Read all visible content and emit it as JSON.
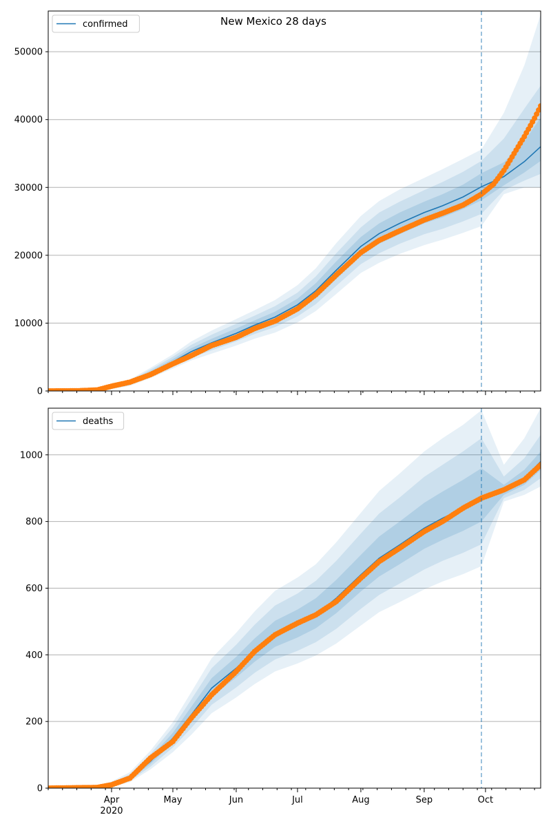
{
  "figure": {
    "title": "New Mexico 28 days"
  },
  "colors": {
    "line": "#1f77b4",
    "points": "#ff7f0e",
    "band": "#1f77b4",
    "grid": "#b0b0b0",
    "divider": "#1f77b4"
  },
  "chart_data": [
    {
      "type": "line",
      "name": "confirmed",
      "legend_label": "confirmed",
      "legend_position": "top-left",
      "grid": "horizontal",
      "x_range": [
        "2020-03-01",
        "2020-10-28"
      ],
      "ylim": [
        0,
        56000
      ],
      "y_ticks": [
        {
          "value": 0,
          "label": "0"
        },
        {
          "value": 10000,
          "label": "10000"
        },
        {
          "value": 20000,
          "label": "20000"
        },
        {
          "value": 30000,
          "label": "30000"
        },
        {
          "value": 40000,
          "label": "40000"
        },
        {
          "value": 50000,
          "label": "50000"
        }
      ],
      "forecast_start": "2020-09-29",
      "model": {
        "dates": [
          "2020-03-01",
          "2020-03-15",
          "2020-03-25",
          "2020-04-01",
          "2020-04-10",
          "2020-04-20",
          "2020-05-01",
          "2020-05-10",
          "2020-05-20",
          "2020-06-01",
          "2020-06-10",
          "2020-06-20",
          "2020-07-01",
          "2020-07-10",
          "2020-07-20",
          "2020-08-01",
          "2020-08-10",
          "2020-08-20",
          "2020-09-01",
          "2020-09-10",
          "2020-09-20",
          "2020-09-29",
          "2020-10-10",
          "2020-10-20",
          "2020-10-28"
        ],
        "median": [
          0,
          20,
          150,
          500,
          1200,
          2600,
          4300,
          5800,
          7100,
          8500,
          9700,
          10900,
          12700,
          14800,
          17800,
          21300,
          23200,
          24700,
          26300,
          27300,
          28600,
          30100,
          31600,
          33800,
          36000
        ],
        "band_inner": [
          [
            0,
            0
          ],
          [
            15,
            25
          ],
          [
            110,
            190
          ],
          [
            400,
            600
          ],
          [
            1000,
            1400
          ],
          [
            2300,
            2900
          ],
          [
            3900,
            4700
          ],
          [
            5300,
            6300
          ],
          [
            6500,
            7700
          ],
          [
            7900,
            9200
          ],
          [
            9000,
            10400
          ],
          [
            10100,
            11700
          ],
          [
            11800,
            13600
          ],
          [
            13700,
            15900
          ],
          [
            16500,
            19100
          ],
          [
            19900,
            22700
          ],
          [
            21700,
            24700
          ],
          [
            23100,
            26300
          ],
          [
            24700,
            27900
          ],
          [
            25600,
            29000
          ],
          [
            26800,
            30400
          ],
          [
            28100,
            32100
          ],
          [
            30300,
            33700
          ],
          [
            32200,
            36800
          ],
          [
            33900,
            40300
          ]
        ],
        "band_mid": [
          [
            0,
            0
          ],
          [
            10,
            30
          ],
          [
            90,
            220
          ],
          [
            330,
            690
          ],
          [
            880,
            1550
          ],
          [
            2100,
            3150
          ],
          [
            3600,
            5050
          ],
          [
            4900,
            6800
          ],
          [
            6000,
            8300
          ],
          [
            7300,
            9900
          ],
          [
            8400,
            11100
          ],
          [
            9400,
            12500
          ],
          [
            11000,
            14500
          ],
          [
            12800,
            16900
          ],
          [
            15500,
            20300
          ],
          [
            18700,
            24100
          ],
          [
            20300,
            26300
          ],
          [
            21700,
            27900
          ],
          [
            23100,
            29600
          ],
          [
            23900,
            30800
          ],
          [
            25000,
            32300
          ],
          [
            26100,
            33900
          ],
          [
            29600,
            37200
          ],
          [
            31000,
            41600
          ],
          [
            32000,
            45000
          ]
        ],
        "band_outer": [
          [
            0,
            0
          ],
          [
            5,
            40
          ],
          [
            70,
            260
          ],
          [
            270,
            780
          ],
          [
            760,
            1700
          ],
          [
            1900,
            3400
          ],
          [
            3300,
            5400
          ],
          [
            4500,
            7300
          ],
          [
            5500,
            8900
          ],
          [
            6700,
            10600
          ],
          [
            7700,
            11900
          ],
          [
            8600,
            13400
          ],
          [
            10100,
            15600
          ],
          [
            11800,
            18100
          ],
          [
            14300,
            21800
          ],
          [
            17400,
            25800
          ],
          [
            18900,
            28000
          ],
          [
            20200,
            29700
          ],
          [
            21500,
            31400
          ],
          [
            22300,
            32700
          ],
          [
            23300,
            34200
          ],
          [
            24300,
            35600
          ],
          [
            29000,
            41000
          ],
          [
            30000,
            48000
          ],
          [
            30000,
            55500
          ]
        ]
      },
      "observed": {
        "dates": [
          "2020-03-01",
          "2020-03-15",
          "2020-03-25",
          "2020-04-01",
          "2020-04-10",
          "2020-04-20",
          "2020-05-01",
          "2020-05-10",
          "2020-05-20",
          "2020-06-01",
          "2020-06-10",
          "2020-06-20",
          "2020-07-01",
          "2020-07-10",
          "2020-07-20",
          "2020-08-01",
          "2020-08-10",
          "2020-08-20",
          "2020-09-01",
          "2020-09-10",
          "2020-09-20",
          "2020-09-29",
          "2020-10-05",
          "2020-10-10",
          "2020-10-15",
          "2020-10-20",
          "2020-10-25",
          "2020-10-28"
        ],
        "values": [
          0,
          20,
          150,
          700,
          1300,
          2400,
          4000,
          5200,
          6700,
          7900,
          9200,
          10300,
          12100,
          14200,
          17100,
          20400,
          22200,
          23600,
          25200,
          26200,
          27400,
          29000,
          30500,
          32500,
          35000,
          37500,
          40200,
          42000
        ]
      }
    },
    {
      "type": "line",
      "name": "deaths",
      "legend_label": "deaths",
      "legend_position": "top-left",
      "grid": "horizontal",
      "x_range": [
        "2020-03-01",
        "2020-10-28"
      ],
      "ylim": [
        0,
        1140
      ],
      "y_ticks": [
        {
          "value": 0,
          "label": "0"
        },
        {
          "value": 200,
          "label": "200"
        },
        {
          "value": 400,
          "label": "400"
        },
        {
          "value": 600,
          "label": "600"
        },
        {
          "value": 800,
          "label": "800"
        },
        {
          "value": 1000,
          "label": "1000"
        }
      ],
      "x_ticks": [
        {
          "date": "2020-04-01",
          "label": "Apr",
          "sublabel": "2020"
        },
        {
          "date": "2020-05-01",
          "label": "May"
        },
        {
          "date": "2020-06-01",
          "label": "Jun"
        },
        {
          "date": "2020-07-01",
          "label": "Jul"
        },
        {
          "date": "2020-08-01",
          "label": "Aug"
        },
        {
          "date": "2020-09-01",
          "label": "Sep"
        },
        {
          "date": "2020-10-01",
          "label": "Oct"
        }
      ],
      "forecast_start": "2020-09-29",
      "model": {
        "dates": [
          "2020-03-01",
          "2020-03-25",
          "2020-04-01",
          "2020-04-10",
          "2020-04-20",
          "2020-05-01",
          "2020-05-10",
          "2020-05-20",
          "2020-06-01",
          "2020-06-10",
          "2020-06-20",
          "2020-07-01",
          "2020-07-10",
          "2020-07-20",
          "2020-08-01",
          "2020-08-10",
          "2020-08-20",
          "2020-09-01",
          "2020-09-10",
          "2020-09-20",
          "2020-09-29",
          "2020-10-10",
          "2020-10-20",
          "2020-10-28"
        ],
        "median": [
          0,
          2,
          10,
          30,
          80,
          150,
          220,
          300,
          360,
          410,
          460,
          490,
          520,
          570,
          640,
          690,
          730,
          780,
          810,
          840,
          870,
          895,
          930,
          980
        ],
        "band_inner": [
          [
            0,
            0
          ],
          [
            1,
            3
          ],
          [
            8,
            13
          ],
          [
            26,
            36
          ],
          [
            72,
            92
          ],
          [
            136,
            166
          ],
          [
            200,
            244
          ],
          [
            275,
            330
          ],
          [
            332,
            394
          ],
          [
            379,
            449
          ],
          [
            424,
            502
          ],
          [
            452,
            536
          ],
          [
            480,
            570
          ],
          [
            525,
            625
          ],
          [
            590,
            700
          ],
          [
            635,
            755
          ],
          [
            672,
            800
          ],
          [
            718,
            856
          ],
          [
            745,
            890
          ],
          [
            772,
            925
          ],
          [
            800,
            960
          ],
          [
            880,
            910
          ],
          [
            910,
            955
          ],
          [
            955,
            1010
          ]
        ],
        "band_mid": [
          [
            0,
            0
          ],
          [
            0,
            4
          ],
          [
            6,
            16
          ],
          [
            22,
            42
          ],
          [
            64,
            102
          ],
          [
            122,
            182
          ],
          [
            180,
            266
          ],
          [
            250,
            360
          ],
          [
            302,
            430
          ],
          [
            346,
            490
          ],
          [
            386,
            548
          ],
          [
            412,
            584
          ],
          [
            438,
            622
          ],
          [
            478,
            682
          ],
          [
            538,
            764
          ],
          [
            580,
            824
          ],
          [
            614,
            872
          ],
          [
            656,
            934
          ],
          [
            682,
            970
          ],
          [
            706,
            1010
          ],
          [
            732,
            1050
          ],
          [
            870,
            935
          ],
          [
            895,
            990
          ],
          [
            930,
            1060
          ]
        ],
        "band_outer": [
          [
            0,
            0
          ],
          [
            0,
            6
          ],
          [
            4,
            20
          ],
          [
            18,
            48
          ],
          [
            56,
            112
          ],
          [
            108,
            198
          ],
          [
            160,
            288
          ],
          [
            225,
            390
          ],
          [
            272,
            466
          ],
          [
            312,
            530
          ],
          [
            350,
            592
          ],
          [
            374,
            632
          ],
          [
            398,
            672
          ],
          [
            434,
            738
          ],
          [
            488,
            826
          ],
          [
            528,
            892
          ],
          [
            558,
            944
          ],
          [
            596,
            1010
          ],
          [
            620,
            1050
          ],
          [
            642,
            1090
          ],
          [
            666,
            1134
          ],
          [
            860,
            970
          ],
          [
            880,
            1050
          ],
          [
            905,
            1140
          ]
        ]
      },
      "observed": {
        "dates": [
          "2020-03-01",
          "2020-03-25",
          "2020-04-01",
          "2020-04-10",
          "2020-04-20",
          "2020-05-01",
          "2020-05-10",
          "2020-05-20",
          "2020-06-01",
          "2020-06-10",
          "2020-06-20",
          "2020-07-01",
          "2020-07-10",
          "2020-07-20",
          "2020-08-01",
          "2020-08-10",
          "2020-08-20",
          "2020-09-01",
          "2020-09-10",
          "2020-09-20",
          "2020-09-29",
          "2020-10-10",
          "2020-10-20",
          "2020-10-28"
        ],
        "values": [
          0,
          2,
          10,
          30,
          90,
          140,
          210,
          280,
          350,
          410,
          460,
          495,
          520,
          560,
          630,
          680,
          720,
          770,
          800,
          840,
          870,
          895,
          925,
          970
        ]
      }
    }
  ]
}
